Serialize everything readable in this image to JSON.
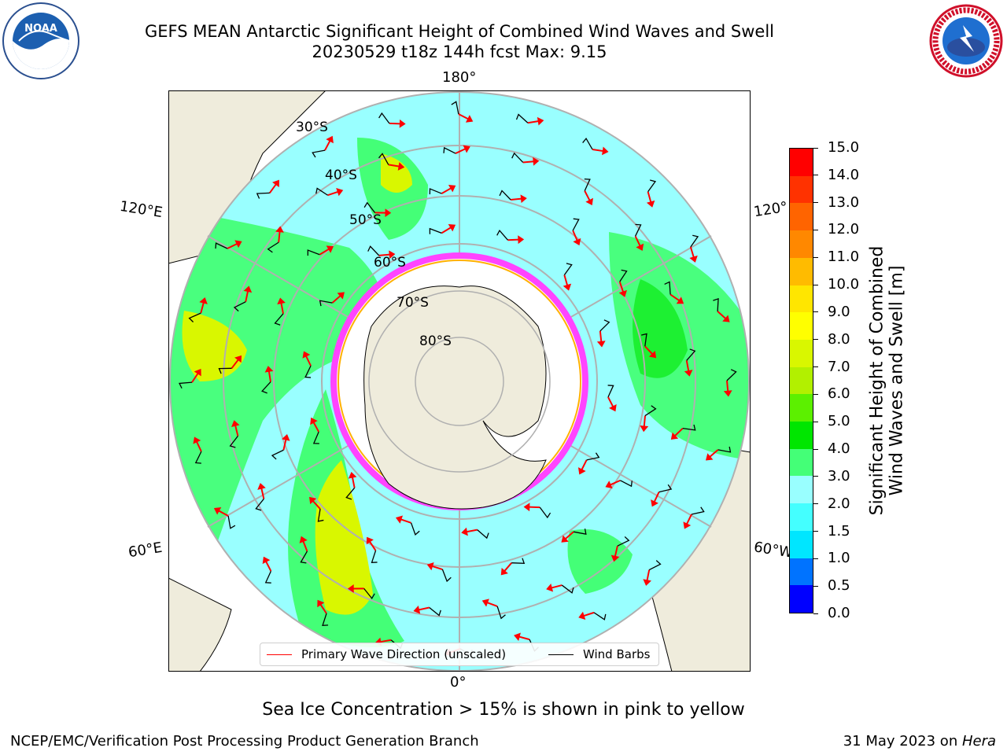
{
  "title_line1": "GEFS MEAN Antarctic Significant Height of Combined Wind Waves and Swell",
  "title_line2": "20230529 t18z 144h fcst   Max: 9.15",
  "logos": {
    "left": "NOAA",
    "right": "NATIONAL WEATHER SERVICE"
  },
  "map": {
    "projection": "south-polar-stereographic",
    "lon_labels": {
      "top": "180°",
      "bottom": "0°",
      "left_upper": "120°E",
      "left_lower": "60°E",
      "right_upper": "120°",
      "right_lower": "60°W"
    },
    "lat_labels": [
      "30°S",
      "40°S",
      "50°S",
      "60°S",
      "70°S",
      "80°S"
    ],
    "colors": {
      "land": "#efecdc",
      "ice": "#ffffff",
      "grid": "#b0b0b0",
      "wave_arrow": "#ff0000",
      "wind_barb": "#000000"
    }
  },
  "colorbar": {
    "label_line1": "Significant Height of Combined",
    "label_line2": "Wind Waves and Swell [m]",
    "tick_labels": [
      "0.0",
      "0.5",
      "1.0",
      "1.5",
      "2.0",
      "3.0",
      "4.0",
      "5.0",
      "6.0",
      "7.0",
      "8.0",
      "9.0",
      "10.0",
      "11.0",
      "12.0",
      "13.0",
      "14.0",
      "15.0"
    ],
    "colors": [
      "#0000ff",
      "#0073ff",
      "#00e6ff",
      "#44ffff",
      "#99ffff",
      "#44ff77",
      "#00e600",
      "#5cf000",
      "#b2f000",
      "#d9f700",
      "#ffff00",
      "#ffe600",
      "#ffbb00",
      "#ff8800",
      "#ff6400",
      "#ff3200",
      "#ff0000"
    ]
  },
  "legend": {
    "wave": "Primary Wave Direction (unscaled)",
    "wind": "Wind Barbs"
  },
  "subtitle": "Sea Ice Concentration > 15% is shown in pink to yellow",
  "footer_left": "NCEP/EMC/Verification Post Processing Product Generation Branch",
  "footer_right_date": "31 May 2023 on ",
  "footer_right_machine": "Hera"
}
